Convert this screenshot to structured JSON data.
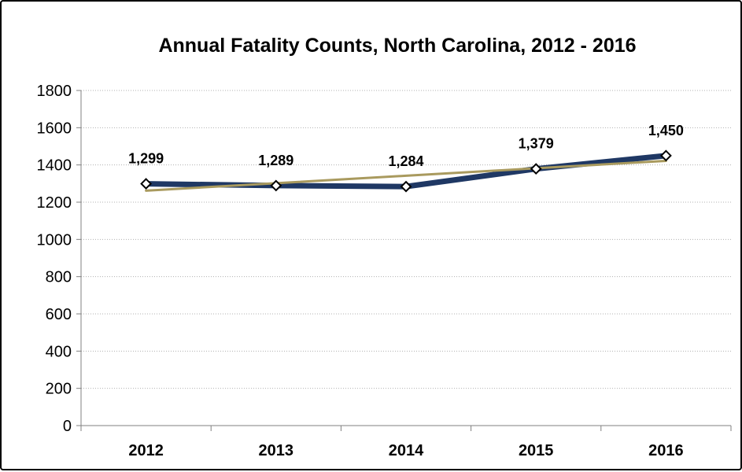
{
  "chart_data": {
    "type": "line",
    "title": "Annual Fatality Counts, North Carolina, 2012 - 2016",
    "xlabel": "",
    "ylabel": "",
    "categories": [
      "2012",
      "2013",
      "2014",
      "2015",
      "2016"
    ],
    "series": [
      {
        "values": [
          1299,
          1289,
          1284,
          1379,
          1450
        ],
        "color": "#1f3864",
        "marker": "diamond",
        "data_labels": [
          "1,299",
          "1,289",
          "1,284",
          "1,379",
          "1,450"
        ]
      },
      {
        "kind": "linear-trendline",
        "values": [
          1262,
          1302,
          1342,
          1382,
          1422
        ],
        "color": "#a99a5e"
      }
    ],
    "ylim": [
      0,
      1800
    ],
    "yticks": [
      "0",
      "200",
      "400",
      "600",
      "800",
      "1000",
      "1200",
      "1400",
      "1600",
      "1800"
    ],
    "grid": true,
    "legend": "none",
    "colors": {
      "series_line": "#1f3864",
      "trendline": "#a99a5e",
      "grid": "#b0b0b0",
      "axis": "#808080",
      "marker_fill": "#ffffff",
      "marker_stroke": "#000000"
    }
  }
}
